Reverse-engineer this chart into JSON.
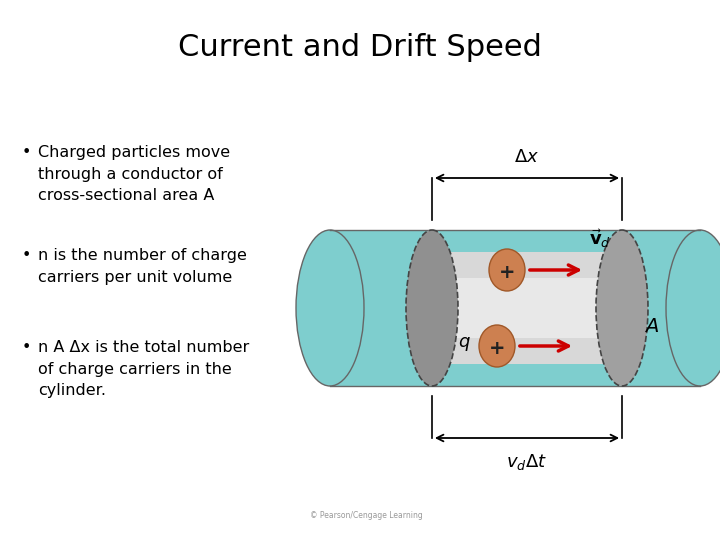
{
  "title": "Current and Drift Speed",
  "title_fontsize": 22,
  "background_color": "#ffffff",
  "bullet_points": [
    "Charged particles move\nthrough a conductor of\ncross-sectional area A",
    "n is the number of charge\ncarriers per unit volume",
    "n A Δx is the total number\nof charge carriers in the\ncylinder."
  ],
  "bullet_fontsize": 11.5,
  "cylinder_teal": "#7ecece",
  "cylinder_gray": "#c8c8c8",
  "cylinder_gray_dark": "#a0a0a0",
  "cylinder_face_dark": "#888888",
  "particle_color": "#cd8050",
  "particle_edge": "#a05828",
  "arrow_color": "#cc0000",
  "black": "#000000",
  "dim_gray": "#555555",
  "copyright": "© Pearson/Cengage Learning"
}
